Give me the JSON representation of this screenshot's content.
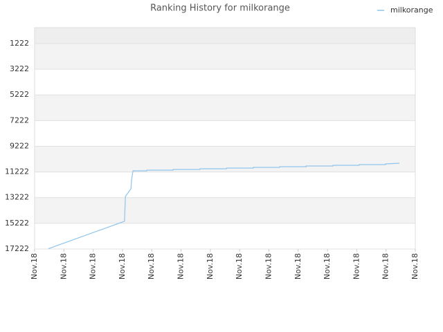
{
  "chart_data": {
    "type": "line",
    "title": "Ranking History for milkorange",
    "x": [
      0.47,
      3.07,
      3.1,
      3.29,
      3.31,
      3.36,
      3.83,
      3.83,
      4.73,
      4.73,
      5.65,
      5.65,
      6.55,
      6.55,
      7.47,
      7.47,
      8.37,
      8.37,
      9.27,
      9.27,
      10.19,
      10.19,
      11.08,
      11.08,
      11.98,
      11.98,
      12.46
    ],
    "series": [
      {
        "name": "milkorange",
        "color": "#8ec4ec",
        "values": [
          17200,
          15067,
          13128,
          12535,
          11835,
          11135,
          11135,
          11081,
          11081,
          11027,
          11027,
          10973,
          10973,
          10919,
          10919,
          10865,
          10865,
          10811,
          10811,
          10757,
          10757,
          10703,
          10703,
          10650,
          10650,
          10596,
          10542
        ]
      }
    ],
    "xlim": [
      0,
      13
    ],
    "xticks": [
      {
        "value": 0,
        "label": "Nov.18"
      },
      {
        "value": 1,
        "label": "Nov.18"
      },
      {
        "value": 2,
        "label": "Nov.18"
      },
      {
        "value": 3,
        "label": "Nov.18"
      },
      {
        "value": 4,
        "label": "Nov.18"
      },
      {
        "value": 5,
        "label": "Nov.18"
      },
      {
        "value": 6,
        "label": "Nov.18"
      },
      {
        "value": 7,
        "label": "Nov.18"
      },
      {
        "value": 8,
        "label": "Nov.18"
      },
      {
        "value": 9,
        "label": "Nov.18"
      },
      {
        "value": 10,
        "label": "Nov.18"
      },
      {
        "value": 11,
        "label": "Nov.18"
      },
      {
        "value": 12,
        "label": "Nov.18"
      },
      {
        "value": 13,
        "label": "Nov.18"
      }
    ],
    "ylim": [
      17222,
      -17
    ],
    "yticks": [
      1222,
      3222,
      5222,
      7222,
      9222,
      11222,
      13222,
      15222,
      17222
    ],
    "legend": "top-right"
  }
}
